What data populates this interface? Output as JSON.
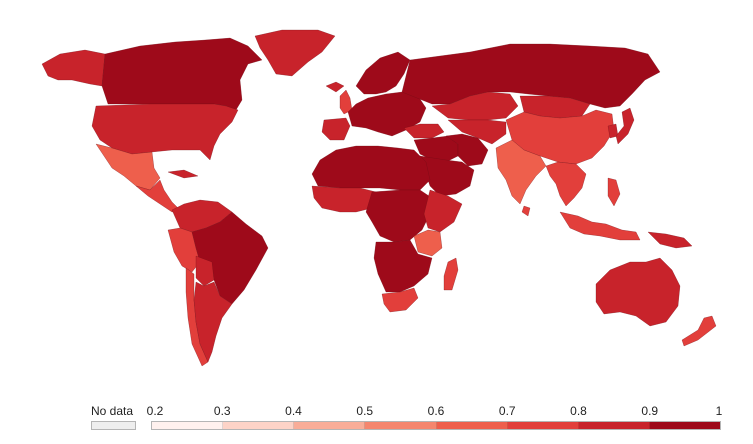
{
  "legend": {
    "no_data_label": "No data",
    "no_data_color": "#eeeeee",
    "ticks": [
      "0.2",
      "0.3",
      "0.4",
      "0.5",
      "0.6",
      "0.7",
      "0.8",
      "0.9",
      "1"
    ],
    "bins": [
      {
        "from": 0.2,
        "to": 0.3,
        "color": "#fff1ee"
      },
      {
        "from": 0.3,
        "to": 0.4,
        "color": "#fdd3c7"
      },
      {
        "from": 0.4,
        "to": 0.5,
        "color": "#f9ad98"
      },
      {
        "from": 0.5,
        "to": 0.6,
        "color": "#f5866e"
      },
      {
        "from": 0.6,
        "to": 0.7,
        "color": "#ee5f4c"
      },
      {
        "from": 0.7,
        "to": 0.8,
        "color": "#e23f3b"
      },
      {
        "from": 0.8,
        "to": 0.9,
        "color": "#c8232b"
      },
      {
        "from": 0.9,
        "to": 1.0,
        "color": "#9e0a1a"
      }
    ]
  },
  "regions": [
    {
      "name": "canada",
      "value": 0.95
    },
    {
      "name": "alaska",
      "value": 0.83
    },
    {
      "name": "greenland",
      "value": 0.83
    },
    {
      "name": "usa",
      "value": 0.85
    },
    {
      "name": "mexico",
      "value": 0.68
    },
    {
      "name": "central-america",
      "value": 0.78
    },
    {
      "name": "cuba",
      "value": 0.86
    },
    {
      "name": "colombia-venezuela",
      "value": 0.85
    },
    {
      "name": "ecuador-peru",
      "value": 0.78
    },
    {
      "name": "brazil",
      "value": 0.96
    },
    {
      "name": "bolivia",
      "value": 0.83
    },
    {
      "name": "chile",
      "value": 0.72
    },
    {
      "name": "argentina",
      "value": 0.88
    },
    {
      "name": "iceland",
      "value": 0.85
    },
    {
      "name": "uk",
      "value": 0.78
    },
    {
      "name": "iberia",
      "value": 0.86
    },
    {
      "name": "scandinavia",
      "value": 0.93
    },
    {
      "name": "europe",
      "value": 0.95
    },
    {
      "name": "russia",
      "value": 0.96
    },
    {
      "name": "turkey",
      "value": 0.86
    },
    {
      "name": "middle-east",
      "value": 0.95
    },
    {
      "name": "saudi-arabia",
      "value": 0.97
    },
    {
      "name": "iran",
      "value": 0.91
    },
    {
      "name": "central-asia",
      "value": 0.86
    },
    {
      "name": "kazakhstan",
      "value": 0.88
    },
    {
      "name": "mongolia",
      "value": 0.8
    },
    {
      "name": "china",
      "value": 0.74
    },
    {
      "name": "india",
      "value": 0.64
    },
    {
      "name": "southeast-asia",
      "value": 0.78
    },
    {
      "name": "japan",
      "value": 0.85
    },
    {
      "name": "korea",
      "value": 0.82
    },
    {
      "name": "indonesia",
      "value": 0.77
    },
    {
      "name": "philippines",
      "value": 0.72
    },
    {
      "name": "papua-new-guinea",
      "value": 0.86
    },
    {
      "name": "australia",
      "value": 0.85
    },
    {
      "name": "new-zealand",
      "value": 0.72
    },
    {
      "name": "north-africa",
      "value": 0.97
    },
    {
      "name": "west-africa",
      "value": 0.88
    },
    {
      "name": "central-africa",
      "value": 0.96
    },
    {
      "name": "east-africa",
      "value": 0.8
    },
    {
      "name": "tanzania",
      "value": 0.65
    },
    {
      "name": "southern-africa",
      "value": 0.96
    },
    {
      "name": "south-africa",
      "value": 0.72
    },
    {
      "name": "madagascar",
      "value": 0.72
    },
    {
      "name": "sri-lanka",
      "value": 0.74
    }
  ]
}
